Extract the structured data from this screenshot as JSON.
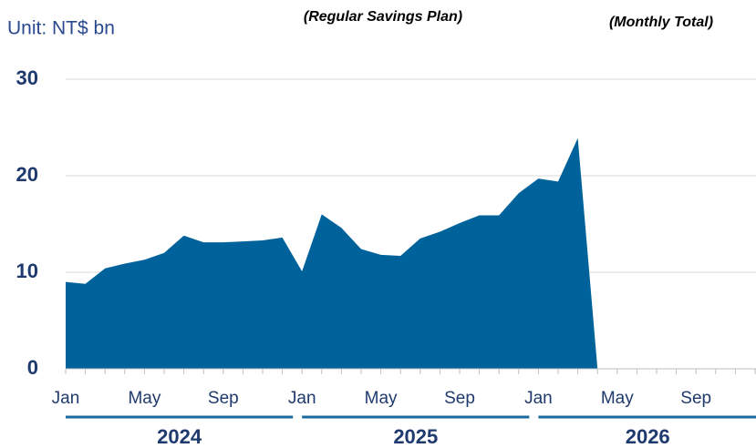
{
  "chart_data": {
    "type": "area",
    "unit_label": "Unit: NT$ bn",
    "annotations": [
      "(Regular Savings  Plan)",
      "(Monthly Total)"
    ],
    "categories": [
      "Jan",
      null,
      null,
      null,
      "May",
      null,
      null,
      null,
      "Sep",
      null,
      null,
      null,
      "Jan",
      null,
      null,
      null,
      "May",
      null,
      null,
      null,
      "Sep",
      null,
      null,
      null,
      "Jan",
      null,
      null,
      null,
      "May",
      null,
      null,
      null,
      "Sep",
      null,
      null,
      null
    ],
    "years": [
      "2024",
      "2025",
      "2026"
    ],
    "values": [
      9.0,
      8.8,
      10.4,
      10.9,
      11.3,
      12.0,
      13.8,
      13.1,
      13.1,
      13.2,
      13.3,
      13.6,
      10.1,
      16.0,
      14.6,
      12.4,
      11.8,
      11.7,
      13.5,
      14.2,
      15.1,
      15.9,
      15.9,
      18.2,
      19.7,
      19.4,
      23.9,
      0,
      null,
      null,
      null,
      null,
      null,
      null,
      null,
      null
    ],
    "color": "#00629b",
    "ylim": [
      0,
      30
    ],
    "yticks": [
      0,
      10,
      20,
      30
    ],
    "grid": true
  }
}
